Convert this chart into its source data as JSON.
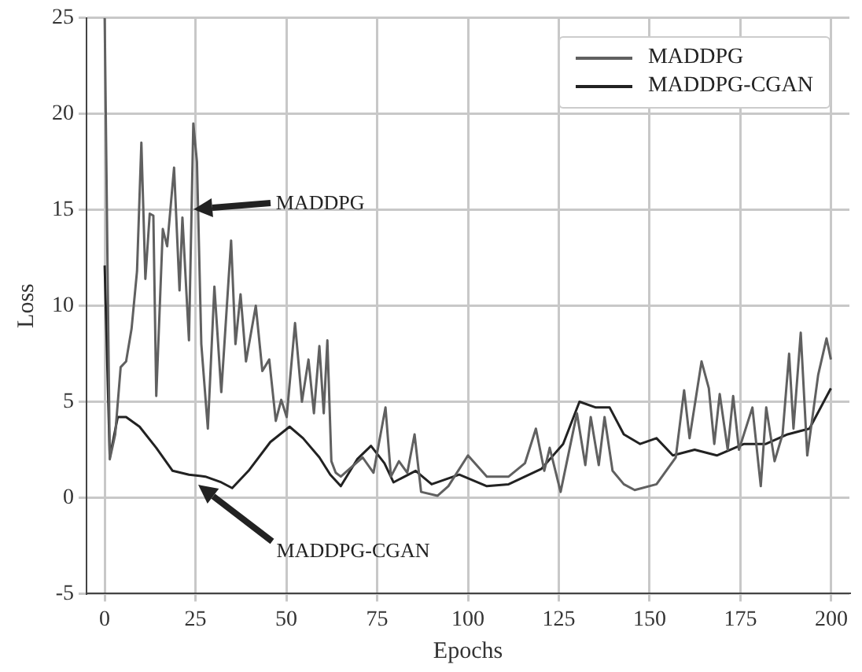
{
  "chart_data": {
    "type": "line",
    "xlabel": "Epochs",
    "ylabel": "Loss",
    "xlim": [
      -5,
      205
    ],
    "xticks": [
      0,
      25,
      50,
      75,
      100,
      125,
      150,
      175,
      200
    ],
    "ylim": [
      -5,
      25
    ],
    "yticks": [
      -5,
      0,
      5,
      10,
      15,
      20,
      25
    ],
    "grid": true,
    "legend": "top right",
    "marker": "none",
    "line_style": "solid",
    "series": [
      {
        "name": "MADDPG",
        "color": "#606060",
        "x": [
          0,
          1.4,
          2.9,
          4.4,
          5.9,
          7.4,
          8.9,
          10.1,
          11.2,
          12.4,
          13.4,
          14.2,
          16,
          17.2,
          19.1,
          20.6,
          21.4,
          23.2,
          24.4,
          25.4,
          26.6,
          28.4,
          30.2,
          32.1,
          34.8,
          36,
          37.4,
          38.9,
          41.6,
          43.4,
          45.3,
          47.1,
          48.6,
          50.1,
          52.4,
          54.3,
          56.1,
          57.6,
          59.1,
          60.3,
          61.3,
          62.4,
          63.6,
          65,
          68,
          71,
          74,
          77.3,
          78.8,
          81,
          83.3,
          85.3,
          87.1,
          91.6,
          94.6,
          100,
          105.2,
          111.2,
          115.7,
          118.7,
          121,
          122.5,
          125.5,
          130,
          132.3,
          133.8,
          136,
          137.6,
          139.8,
          142.9,
          145.9,
          151.9,
          157.2,
          159.5,
          161,
          164.3,
          166.3,
          167.8,
          169.3,
          171.5,
          173,
          174.6,
          178.3,
          180.6,
          182.1,
          184.4,
          186.6,
          188.4,
          189.6,
          191.6,
          193.4,
          196.4,
          198.7,
          199.9
        ],
        "values": [
          25,
          2.0,
          3.3,
          6.8,
          7.1,
          8.8,
          11.8,
          18.5,
          11.4,
          14.8,
          14.7,
          5.3,
          14.0,
          13.1,
          17.2,
          10.8,
          14.6,
          8.2,
          19.5,
          17.5,
          8.0,
          3.6,
          11.0,
          5.5,
          13.4,
          8.0,
          10.6,
          7.1,
          10.0,
          6.6,
          7.2,
          4.0,
          5.1,
          4.2,
          9.1,
          5.0,
          7.2,
          4.4,
          7.9,
          4.4,
          8.2,
          1.9,
          1.3,
          1.1,
          1.6,
          2.1,
          1.3,
          4.7,
          1.1,
          1.9,
          1.3,
          3.3,
          0.3,
          0.1,
          0.6,
          2.2,
          1.1,
          1.1,
          1.8,
          3.6,
          1.4,
          2.6,
          0.3,
          4.4,
          1.7,
          4.2,
          1.7,
          4.2,
          1.4,
          0.7,
          0.4,
          0.7,
          2.1,
          5.6,
          3.1,
          7.1,
          5.7,
          2.8,
          5.4,
          2.5,
          5.3,
          2.5,
          4.7,
          0.6,
          4.7,
          1.9,
          3.3,
          7.5,
          3.6,
          8.6,
          2.2,
          6.4,
          8.3,
          7.2
        ]
      },
      {
        "name": "MADDPG-CGAN",
        "color": "#222222",
        "x": [
          0,
          1.4,
          3.6,
          5.9,
          9.6,
          14.2,
          18.7,
          23.2,
          27.7,
          32.1,
          35.1,
          39.6,
          45.6,
          50.9,
          54.6,
          59.1,
          62.1,
          65,
          69.5,
          73.3,
          77,
          79.5,
          85.6,
          90,
          97.6,
          105.2,
          111.2,
          120.2,
          126.2,
          130.7,
          135.2,
          139,
          142.9,
          147.4,
          151.9,
          156.4,
          162.4,
          168.5,
          176,
          182,
          188,
          194,
          199.9
        ],
        "values": [
          12.1,
          2.1,
          4.2,
          4.2,
          3.7,
          2.6,
          1.4,
          1.2,
          1.1,
          0.8,
          0.5,
          1.4,
          2.9,
          3.7,
          3.1,
          2.1,
          1.2,
          0.6,
          2.0,
          2.7,
          1.8,
          0.8,
          1.4,
          0.7,
          1.2,
          0.6,
          0.7,
          1.5,
          2.8,
          5.0,
          4.7,
          4.7,
          3.3,
          2.8,
          3.1,
          2.2,
          2.5,
          2.2,
          2.8,
          2.8,
          3.3,
          3.6,
          5.7
        ]
      }
    ],
    "annotations": [
      "MADDPG",
      "MADDPG-CGAN"
    ]
  }
}
